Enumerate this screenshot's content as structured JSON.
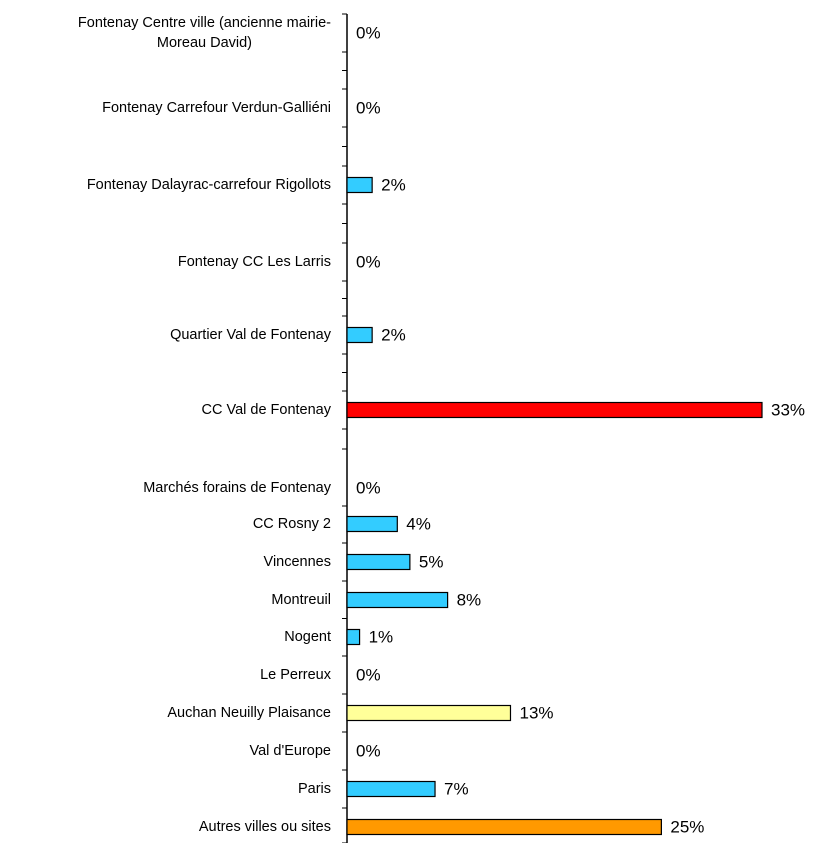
{
  "chart_data": {
    "type": "bar",
    "orientation": "horizontal",
    "categories": [
      "Fontenay Centre ville (ancienne mairie-\nMoreau David)",
      "Fontenay Carrefour Verdun-Galliéni",
      "Fontenay Dalayrac-carrefour Rigollots",
      "Fontenay CC Les Larris",
      "Quartier Val de Fontenay",
      "CC Val de Fontenay",
      "Marchés forains de Fontenay",
      "CC Rosny 2",
      "Vincennes",
      "Montreuil",
      "Nogent",
      "Le Perreux",
      "Auchan Neuilly Plaisance",
      "Val d'Europe",
      "Paris",
      "Autres villes ou sites"
    ],
    "values": [
      0,
      0,
      2,
      0,
      2,
      33,
      0,
      4,
      5,
      8,
      1,
      0,
      13,
      0,
      7,
      25
    ],
    "value_labels": [
      "0%",
      "0%",
      "2%",
      "0%",
      "2%",
      "33%",
      "0%",
      "4%",
      "5%",
      "8%",
      "1%",
      "0%",
      "13%",
      "0%",
      "7%",
      "25%"
    ],
    "colors": [
      "#33ccff",
      "#33ccff",
      "#33ccff",
      "#33ccff",
      "#33ccff",
      "#ff0000",
      "#33ccff",
      "#33ccff",
      "#33ccff",
      "#33ccff",
      "#33ccff",
      "#33ccff",
      "#ffff99",
      "#33ccff",
      "#33ccff",
      "#ff9900"
    ],
    "xlim": [
      0,
      33
    ]
  }
}
